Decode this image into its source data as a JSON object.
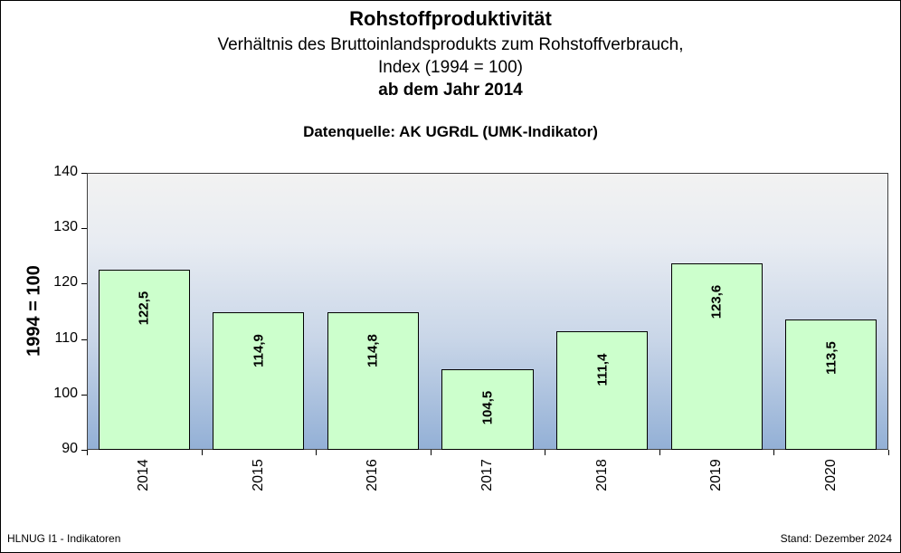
{
  "header": {
    "title": "Rohstoffproduktivität",
    "subtitle1": "Verhältnis des Bruttoinlandsprodukts zum Rohstoffverbrauch,",
    "subtitle2": "Index (1994 = 100)",
    "subtitle3": "ab dem Jahr 2014",
    "source": "Datenquelle: AK UGRdL (UMK-Indikator)"
  },
  "footer": {
    "left": "HLNUG I1  - Indikatoren",
    "right": "Stand:  Dezember 2024"
  },
  "colors": {
    "bar_fill": "#ccffcc",
    "bar_border": "#000000",
    "plot_bg_top": "#f2f2f2",
    "plot_bg_bottom": "#93b0d6"
  },
  "chart_data": {
    "type": "bar",
    "title": "Rohstoffproduktivität",
    "subtitle": "Verhältnis des Bruttoinlandsprodukts zum Rohstoffverbrauch, Index (1994 = 100) ab dem Jahr 2014",
    "categories": [
      "2014",
      "2015",
      "2016",
      "2017",
      "2018",
      "2019",
      "2020"
    ],
    "values": [
      122.5,
      114.9,
      114.8,
      104.5,
      111.4,
      123.6,
      113.5
    ],
    "value_labels": [
      "122,5",
      "114,9",
      "114,8",
      "104,5",
      "111,4",
      "123,6",
      "113,5"
    ],
    "xlabel": "",
    "ylabel": "1994 = 100",
    "ylim": [
      90,
      140
    ],
    "yticks": [
      "90",
      "100",
      "110",
      "120",
      "130",
      "140"
    ],
    "grid": false,
    "legend": null,
    "annotations": [
      "Datenquelle: AK UGRdL (UMK-Indikator)"
    ]
  }
}
